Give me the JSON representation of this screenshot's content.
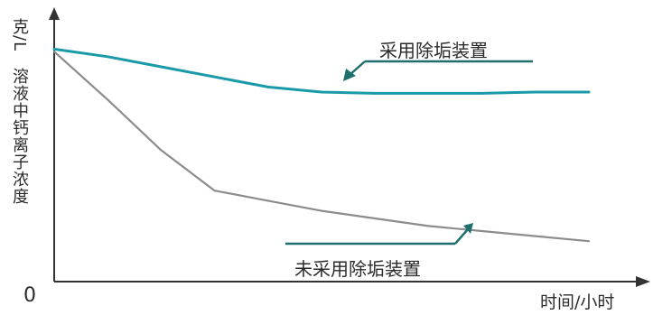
{
  "chart_data": {
    "type": "line",
    "title": "",
    "xlabel": "时间/小时",
    "ylabel": "溶液中钙离子浓度",
    "yunit": "克/L",
    "origin_label": "0",
    "grid": false,
    "x": [
      0,
      1,
      2,
      3,
      4,
      5,
      6,
      7,
      8,
      9,
      10
    ],
    "xlim": [
      0,
      10
    ],
    "ylim": [
      0,
      10
    ],
    "series": [
      {
        "name": "采用除垢装置",
        "color": "#1a9aa8",
        "values": [
          9.2,
          8.9,
          8.5,
          8.1,
          7.7,
          7.5,
          7.45,
          7.45,
          7.45,
          7.5,
          7.5
        ]
      },
      {
        "name": "未采用除垢装置",
        "color": "#8c8c8c",
        "values": [
          9.1,
          7.2,
          5.2,
          3.6,
          3.2,
          2.8,
          2.5,
          2.2,
          2.0,
          1.8,
          1.6
        ]
      }
    ],
    "colors": {
      "axis": "#333333",
      "arrow": "#1f6f6f"
    }
  }
}
